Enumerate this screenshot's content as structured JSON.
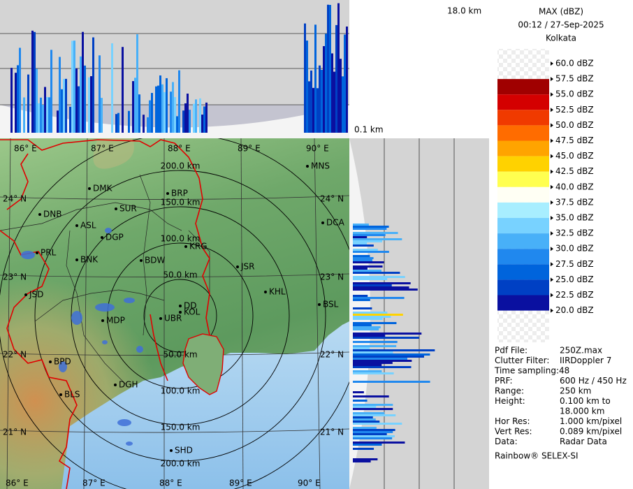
{
  "header": {
    "title": "MAX (dBZ)",
    "time": "00:12 / 27-Sep-2025",
    "station": "Kolkata"
  },
  "height_labels": {
    "top": "18.0 km",
    "bottom": "0.1 km"
  },
  "legend": [
    {
      "label": "60.0 dBZ"
    },
    {
      "label": "57.5 dBZ"
    },
    {
      "label": "55.0 dBZ",
      "color": "#a00000"
    },
    {
      "label": "52.5 dBZ",
      "color": "#d40000"
    },
    {
      "label": "50.0 dBZ",
      "color": "#f03a00"
    },
    {
      "label": "47.5 dBZ",
      "color": "#ff6c00"
    },
    {
      "label": "45.0 dBZ",
      "color": "#ffa400"
    },
    {
      "label": "42.5 dBZ",
      "color": "#ffd200"
    },
    {
      "label": "40.0 dBZ",
      "color": "#ffff50"
    },
    {
      "label": "37.5 dBZ",
      "color": "#fffff4"
    },
    {
      "label": "35.0 dBZ",
      "color": "#a8eeff"
    },
    {
      "label": "32.5 dBZ",
      "color": "#78d2ff"
    },
    {
      "label": "30.0 dBZ",
      "color": "#48b0f8"
    },
    {
      "label": "27.5 dBZ",
      "color": "#2088ee"
    },
    {
      "label": "25.0 dBZ",
      "color": "#0064dc"
    },
    {
      "label": "22.5 dBZ",
      "color": "#0040c4"
    },
    {
      "label": "20.0 dBZ",
      "color": "#0a10a0"
    }
  ],
  "map": {
    "longitudes": [
      "86° E",
      "87° E",
      "88° E",
      "89° E",
      "90° E"
    ],
    "latitudes": [
      "24° N",
      "23° N",
      "22° N",
      "21° N"
    ],
    "range_rings": [
      "50.0 km",
      "100.0 km",
      "150.0 km",
      "200.0 km"
    ],
    "cities": [
      "MNS",
      "DMK",
      "BRP",
      "SUR",
      "DNB",
      "ASL",
      "DGP",
      "DCA",
      "PRL",
      "KRG",
      "BNK",
      "BDW",
      "JSR",
      "KHL",
      "JSD",
      "DD",
      "KOL",
      "UBR",
      "BSL",
      "MDP",
      "BPD",
      "DGH",
      "BLS",
      "SHD"
    ]
  },
  "info": [
    [
      "Pdf File:",
      "250Z.max"
    ],
    [
      "Clutter Filter:",
      "IIRDoppler 7"
    ],
    [
      "Time sampling:48"
    ],
    [
      "PRF:",
      "600 Hz / 450 Hz"
    ],
    [
      "Range:",
      "250 km"
    ],
    [
      "Height:",
      "0.100 km to",
      "18.000 km"
    ],
    [
      "Hor Res:",
      "1.000 km/pixel"
    ],
    [
      "Vert Res:",
      "0.089 km/pixel"
    ],
    [
      "Data:",
      "Radar Data"
    ]
  ],
  "footer": "Rainbow® SELEX-SI"
}
